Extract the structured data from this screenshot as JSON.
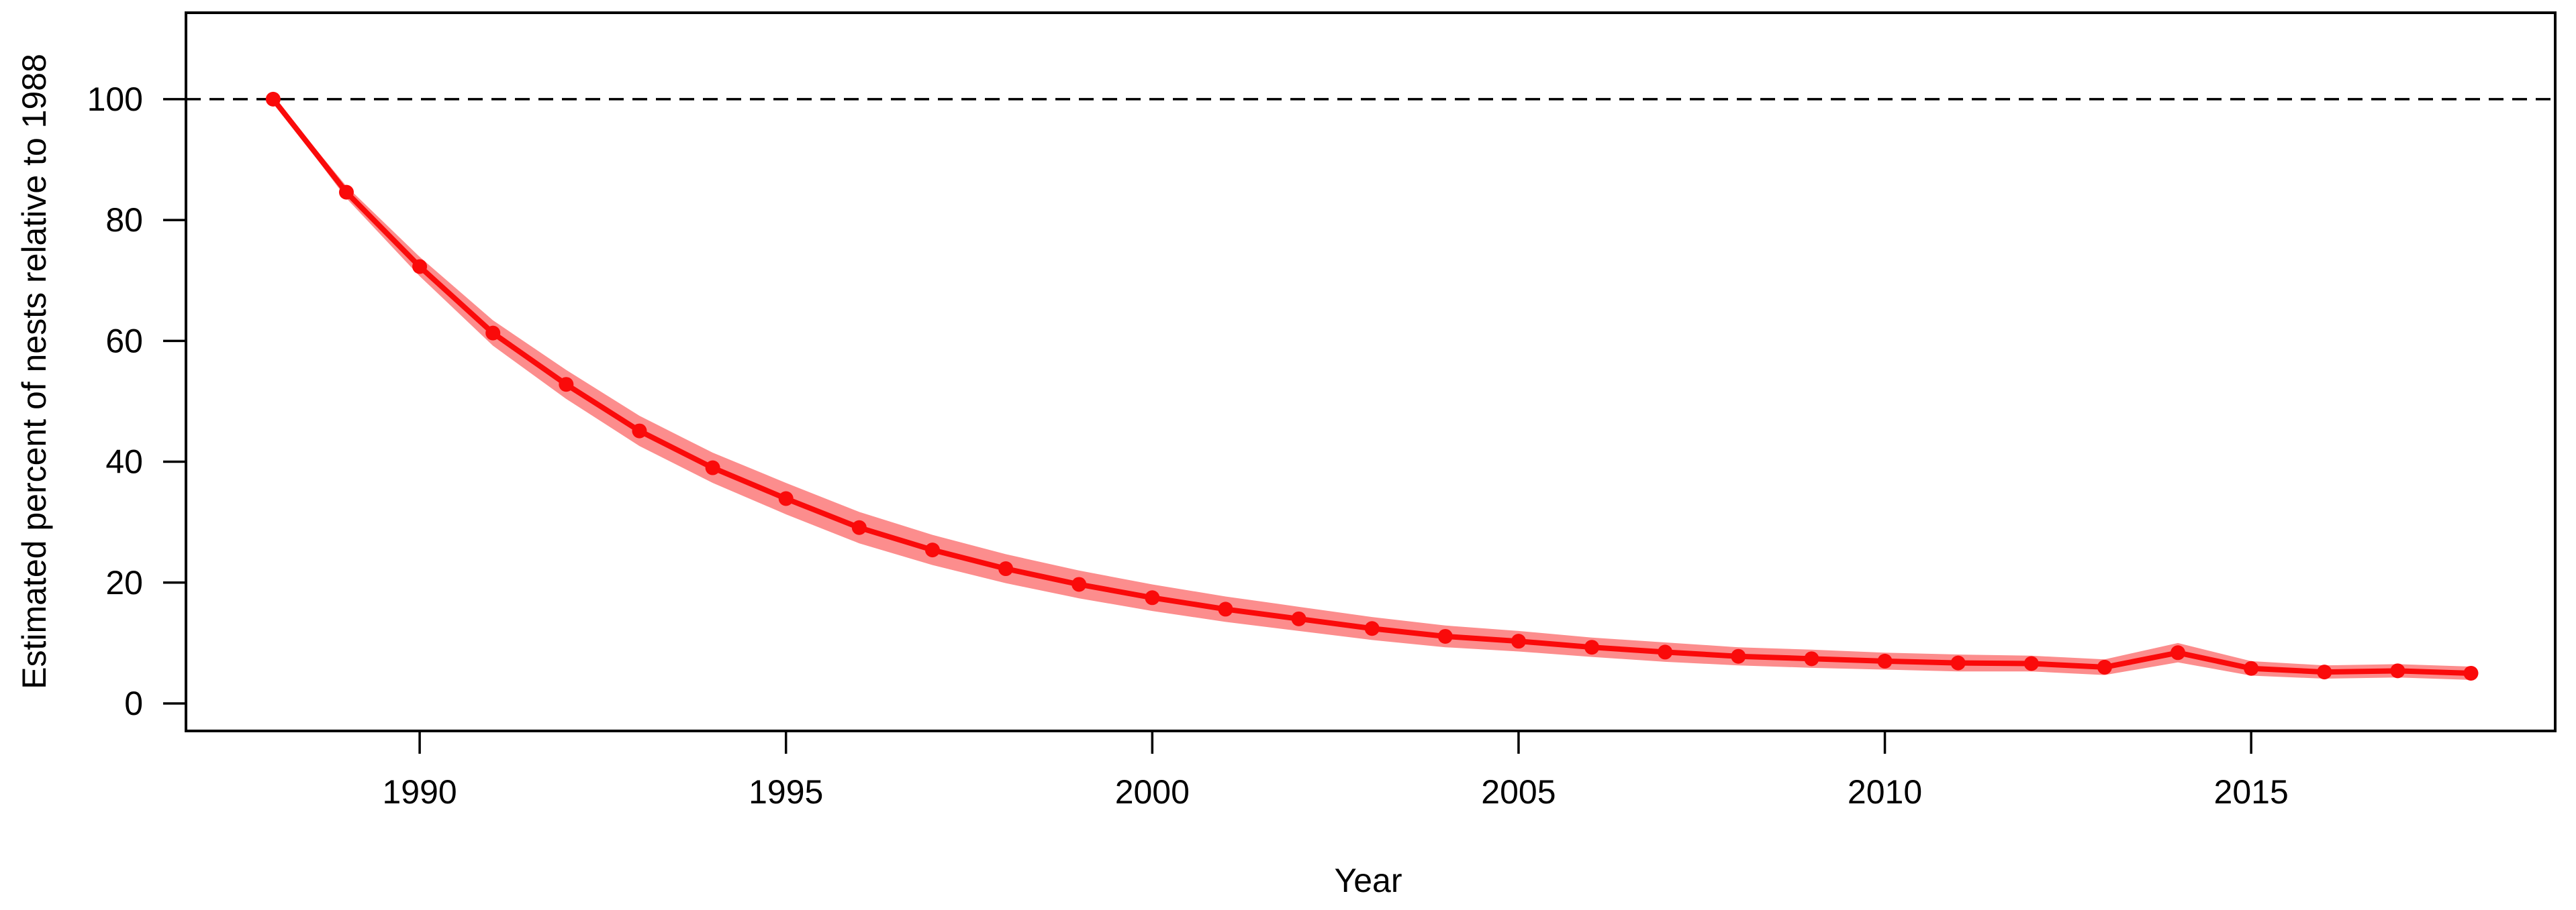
{
  "chart_data": {
    "type": "line",
    "title": "",
    "xlabel": "Year",
    "ylabel": "Estimated percent of nests relative to 1988",
    "x": [
      1988,
      1989,
      1990,
      1991,
      1992,
      1993,
      1994,
      1995,
      1996,
      1997,
      1998,
      1999,
      2000,
      2001,
      2002,
      2003,
      2004,
      2005,
      2006,
      2007,
      2008,
      2009,
      2010,
      2011,
      2012,
      2013,
      2014,
      2015,
      2016,
      2017,
      2018
    ],
    "series": [
      {
        "name": "Estimated percent of nests relative to 1988",
        "values": [
          100,
          84.6,
          72.3,
          61.3,
          52.8,
          45.1,
          39.0,
          33.9,
          29.1,
          25.4,
          22.3,
          19.7,
          17.5,
          15.6,
          14.0,
          12.4,
          11.1,
          10.3,
          9.3,
          8.5,
          7.8,
          7.4,
          7.0,
          6.7,
          6.6,
          6.0,
          8.4,
          5.8,
          5.2,
          5.4,
          5.0
        ],
        "color": "#FA0A0A",
        "marker": "point",
        "line_width": 8
      }
    ],
    "band": {
      "name": "confidence-band",
      "color": "#FC8D8D",
      "upper": [
        100.3,
        85.6,
        73.9,
        63.4,
        55.2,
        47.6,
        41.5,
        36.5,
        31.7,
        27.9,
        24.7,
        22.0,
        19.7,
        17.7,
        16.0,
        14.3,
        12.9,
        12.0,
        10.9,
        10.1,
        9.3,
        8.9,
        8.4,
        8.1,
        7.9,
        7.3,
        10.0,
        7.0,
        6.3,
        6.5,
        6.1
      ],
      "lower": [
        99.7,
        83.6,
        70.7,
        59.2,
        50.4,
        42.6,
        36.5,
        31.3,
        26.5,
        22.9,
        19.9,
        17.4,
        15.3,
        13.5,
        12.0,
        10.5,
        9.3,
        8.6,
        7.7,
        6.9,
        6.3,
        5.9,
        5.6,
        5.3,
        5.3,
        4.7,
        6.8,
        4.6,
        4.1,
        4.3,
        3.9
      ]
    },
    "reference_line": {
      "y": 100,
      "style": "dashed",
      "color": "#000000"
    },
    "x_ticks": [
      1990,
      1995,
      2000,
      2005,
      2010,
      2015
    ],
    "y_ticks": [
      0,
      20,
      40,
      60,
      80,
      100
    ],
    "xlim": [
      1986.81,
      2019.15
    ],
    "ylim": [
      -4.55,
      114.3
    ],
    "grid": false,
    "legend_position": "none",
    "axis_color": "#000000",
    "text_color": "#000000"
  }
}
